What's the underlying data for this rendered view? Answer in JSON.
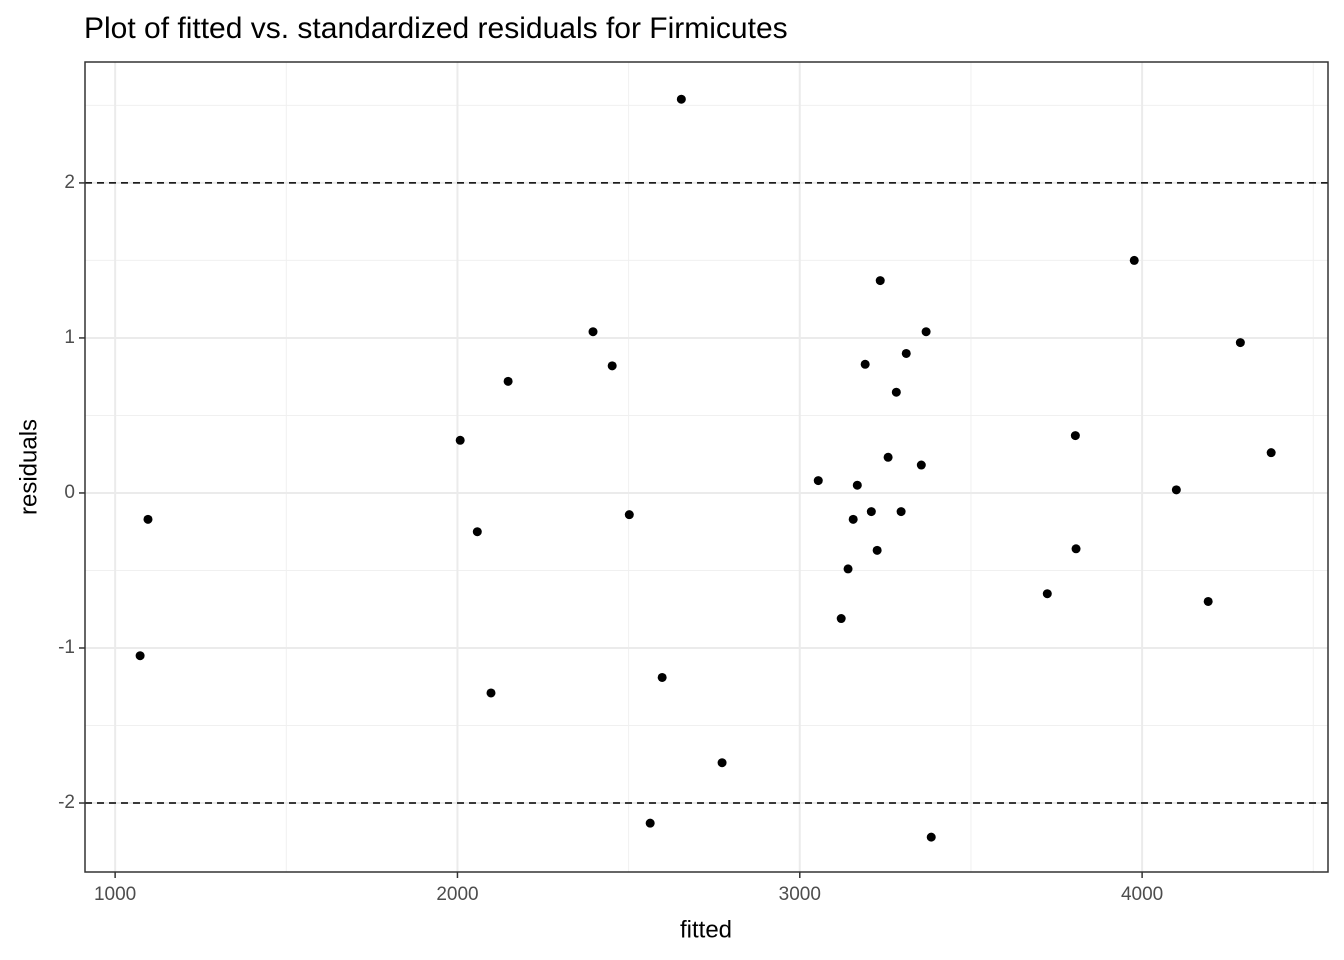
{
  "chart_data": {
    "type": "scatter",
    "title": "Plot of fitted vs. standardized residuals for Firmicutes",
    "x_label": "fitted",
    "y_label": "residuals",
    "color": "#000000",
    "x": [
      1073,
      1096,
      2008,
      2058,
      2098,
      2148,
      2396,
      2452,
      2502,
      2598,
      2563,
      2654,
      2773,
      3054,
      3121,
      3141,
      3156,
      3168,
      3191,
      3209,
      3226,
      3235,
      3258,
      3282,
      3296,
      3311,
      3355,
      3369,
      3384,
      3723,
      3805,
      3807,
      3977,
      4100,
      4193,
      4287,
      4377
    ],
    "values": [
      -1.05,
      -0.17,
      0.34,
      -0.25,
      -1.29,
      0.72,
      1.04,
      0.82,
      -0.14,
      -1.19,
      -2.13,
      2.54,
      -1.74,
      0.08,
      -0.81,
      -0.49,
      -0.17,
      0.05,
      0.83,
      -0.12,
      -0.37,
      1.37,
      0.23,
      0.65,
      -0.12,
      0.9,
      0.18,
      1.04,
      -2.22,
      -0.65,
      0.37,
      -0.36,
      1.5,
      0.02,
      -0.7,
      0.97,
      0.26
    ],
    "xlim": [
      912,
      4543
    ],
    "ylim": [
      -2.445,
      2.78
    ],
    "xticks": [
      1000,
      2000,
      3000,
      4000
    ],
    "yticks": [
      -2,
      -1,
      0,
      1,
      2
    ],
    "xminorticks": [
      1500,
      2500,
      3500,
      4500
    ],
    "yminorticks": [
      -1.5,
      -0.5,
      0.5,
      1.5,
      2.5
    ],
    "hlines": [
      -2,
      2
    ],
    "grid": true
  }
}
